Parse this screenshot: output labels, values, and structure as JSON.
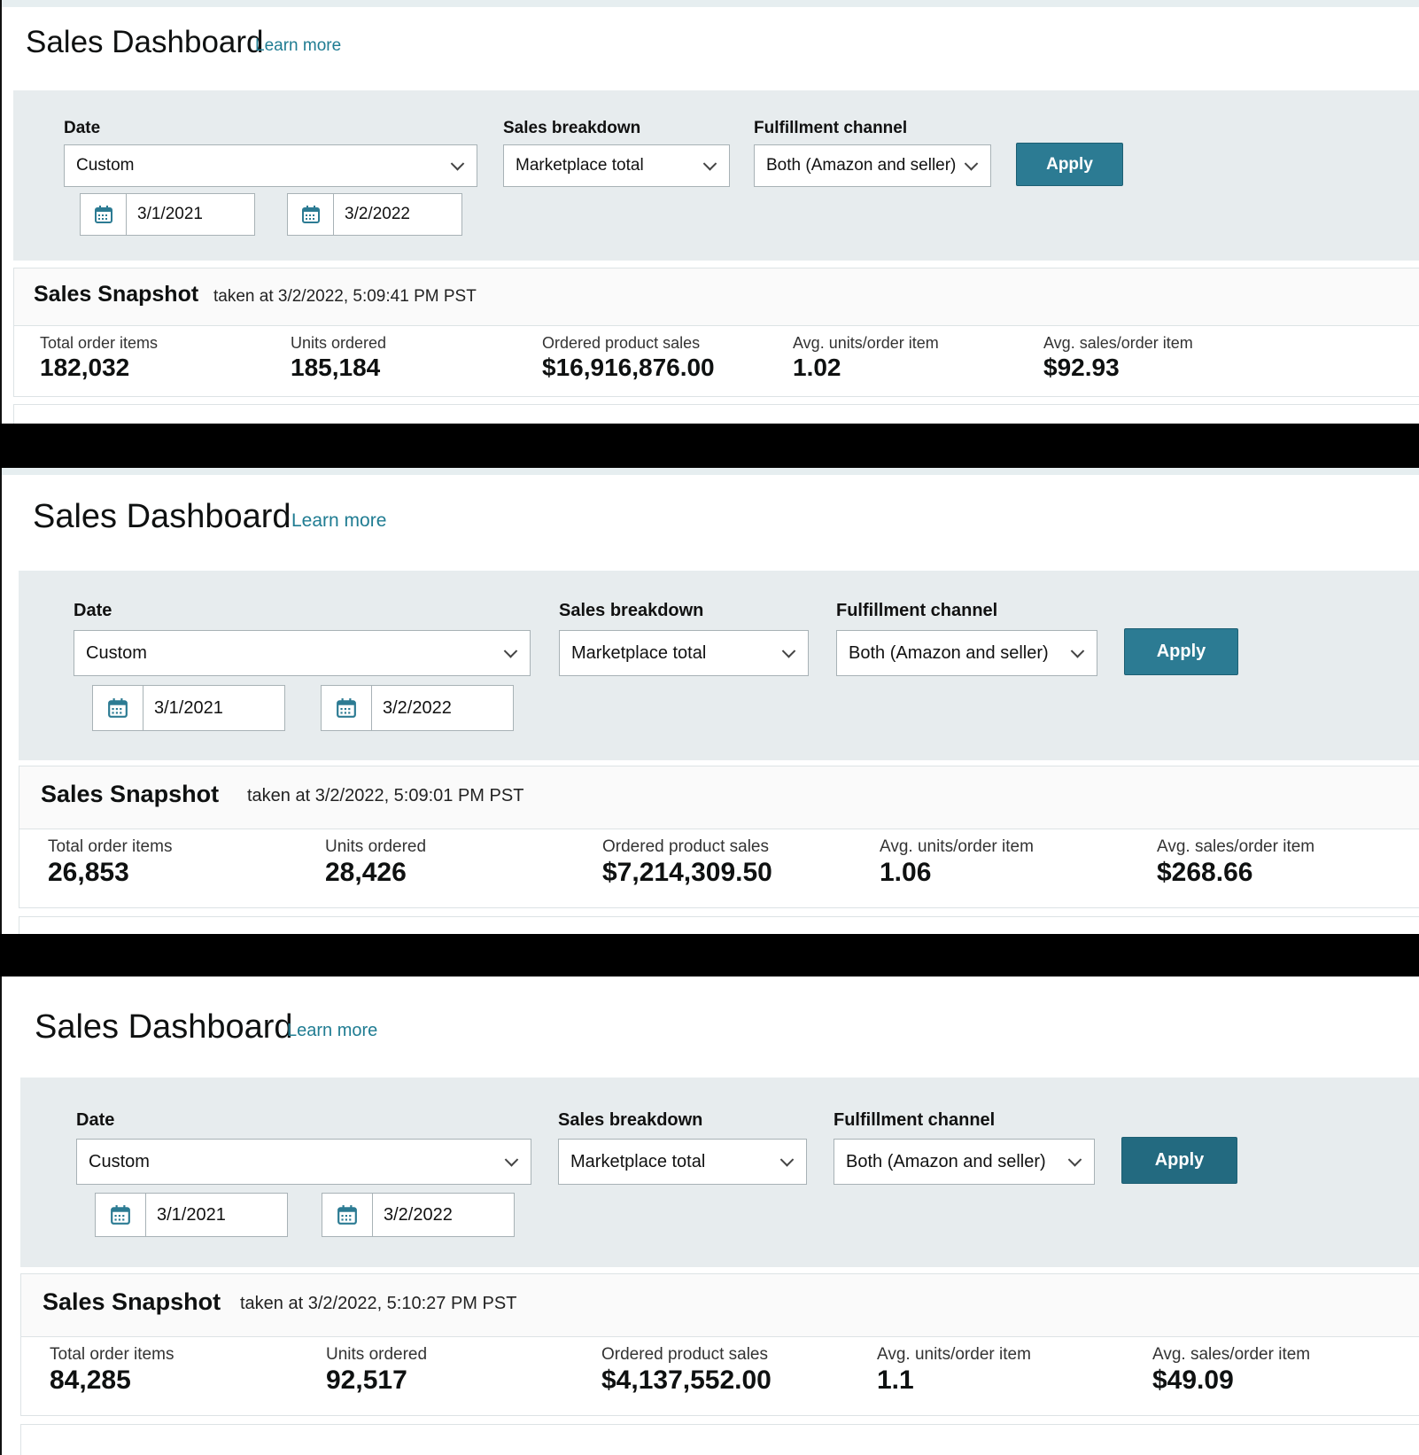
{
  "colors": {
    "accent": "#2c7b93",
    "filter_bg": "#e7ecee",
    "link": "#1f7c92"
  },
  "icons": {
    "calendar": "calendar-icon",
    "dropdown": "chevron-down-icon"
  },
  "panels": [
    {
      "title": "Sales Dashboard",
      "learn_more": "Learn more",
      "filters": {
        "date_label": "Date",
        "date_value": "Custom",
        "start_date": "3/1/2021",
        "end_date": "3/2/2022",
        "breakdown_label": "Sales breakdown",
        "breakdown_value": "Marketplace total",
        "channel_label": "Fulfillment channel",
        "channel_value": "Both (Amazon and seller)",
        "apply_label": "Apply"
      },
      "snapshot": {
        "title": "Sales Snapshot",
        "taken": "taken at 3/2/2022, 5:09:41 PM PST",
        "metrics": [
          {
            "label": "Total order items",
            "value": "182,032"
          },
          {
            "label": "Units ordered",
            "value": "185,184"
          },
          {
            "label": "Ordered product sales",
            "value": "$16,916,876.00"
          },
          {
            "label": "Avg. units/order item",
            "value": "1.02"
          },
          {
            "label": "Avg. sales/order item",
            "value": "$92.93"
          }
        ]
      }
    },
    {
      "title": "Sales Dashboard",
      "learn_more": "Learn more",
      "filters": {
        "date_label": "Date",
        "date_value": "Custom",
        "start_date": "3/1/2021",
        "end_date": "3/2/2022",
        "breakdown_label": "Sales breakdown",
        "breakdown_value": "Marketplace total",
        "channel_label": "Fulfillment channel",
        "channel_value": "Both (Amazon and seller)",
        "apply_label": "Apply"
      },
      "snapshot": {
        "title": "Sales Snapshot",
        "taken": "taken at 3/2/2022, 5:09:01 PM PST",
        "metrics": [
          {
            "label": "Total order items",
            "value": "26,853"
          },
          {
            "label": "Units ordered",
            "value": "28,426"
          },
          {
            "label": "Ordered product sales",
            "value": "$7,214,309.50"
          },
          {
            "label": "Avg. units/order item",
            "value": "1.06"
          },
          {
            "label": "Avg. sales/order item",
            "value": "$268.66"
          }
        ]
      }
    },
    {
      "title": "Sales Dashboard",
      "learn_more": "Learn more",
      "filters": {
        "date_label": "Date",
        "date_value": "Custom",
        "start_date": "3/1/2021",
        "end_date": "3/2/2022",
        "breakdown_label": "Sales breakdown",
        "breakdown_value": "Marketplace total",
        "channel_label": "Fulfillment channel",
        "channel_value": "Both (Amazon and seller)",
        "apply_label": "Apply"
      },
      "snapshot": {
        "title": "Sales Snapshot",
        "taken": "taken at 3/2/2022, 5:10:27 PM PST",
        "metrics": [
          {
            "label": "Total order items",
            "value": "84,285"
          },
          {
            "label": "Units ordered",
            "value": "92,517"
          },
          {
            "label": "Ordered product sales",
            "value": "$4,137,552.00"
          },
          {
            "label": "Avg. units/order item",
            "value": "1.1"
          },
          {
            "label": "Avg. sales/order item",
            "value": "$49.09"
          }
        ]
      }
    }
  ]
}
